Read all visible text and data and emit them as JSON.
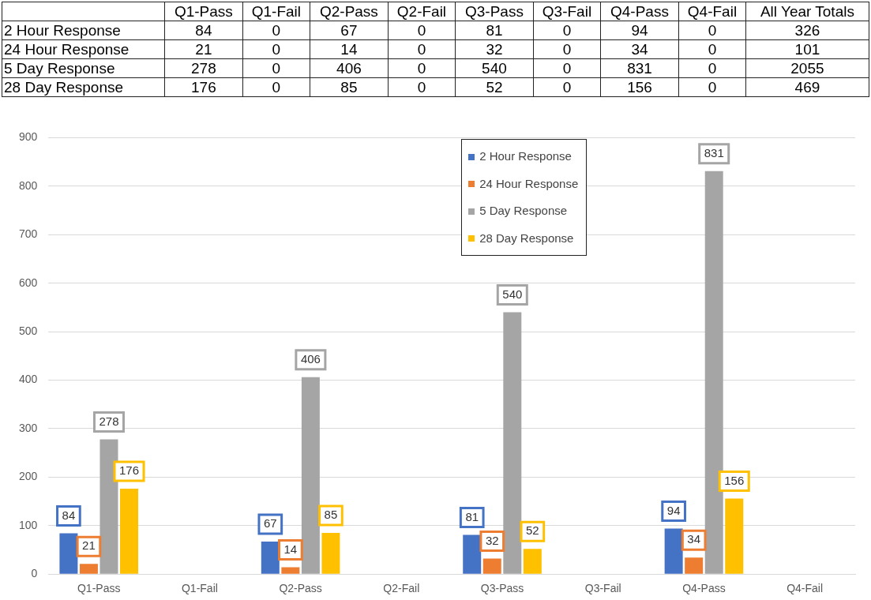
{
  "chart_data": [
    {
      "type": "heatmap",
      "categories": [
        "Q1-Pass",
        "Q1-Fail",
        "Q2-Pass",
        "Q2-Fail",
        "Q3-Pass",
        "Q3-Fail",
        "Q4-Pass",
        "Q4-Fail",
        "All Year Totals"
      ],
      "y_categories": [
        "2 Hour Response",
        "24 Hour Response",
        "5 Day Response",
        "28 Day Response"
      ],
      "cells": [
        [
          84,
          0,
          67,
          0,
          81,
          0,
          94,
          0,
          326
        ],
        [
          21,
          0,
          14,
          0,
          32,
          0,
          34,
          0,
          101
        ],
        [
          278,
          0,
          406,
          0,
          540,
          0,
          831,
          0,
          2055
        ],
        [
          176,
          0,
          85,
          0,
          52,
          0,
          156,
          0,
          469
        ]
      ],
      "data_labels": true
    },
    {
      "type": "bar",
      "categories": [
        "Q1-Pass",
        "Q1-Fail",
        "Q2-Pass",
        "Q2-Fail",
        "Q3-Pass",
        "Q3-Fail",
        "Q4-Pass",
        "Q4-Fail"
      ],
      "series": [
        {
          "name": "2 Hour Response",
          "color": "#4472c4",
          "values": [
            84,
            0,
            67,
            0,
            81,
            0,
            94,
            0
          ],
          "value_labels": [
            "84",
            null,
            "67",
            null,
            "81",
            null,
            "94",
            null
          ]
        },
        {
          "name": "24 Hour Response",
          "color": "#ed7d31",
          "values": [
            21,
            0,
            14,
            0,
            32,
            0,
            34,
            0
          ],
          "value_labels": [
            "21",
            null,
            "14",
            null,
            "32",
            null,
            "34",
            null
          ]
        },
        {
          "name": "5 Day Response",
          "color": "#a5a5a5",
          "values": [
            278,
            0,
            406,
            0,
            540,
            0,
            831,
            0
          ],
          "value_labels": [
            "278",
            null,
            "406",
            null,
            "540",
            null,
            "831",
            null
          ]
        },
        {
          "name": "28 Day Response",
          "color": "#ffc000",
          "values": [
            176,
            0,
            85,
            0,
            52,
            0,
            156,
            0
          ],
          "value_labels": [
            "176",
            null,
            "85",
            null,
            "52",
            null,
            "156",
            null
          ]
        }
      ],
      "ylim": [
        0,
        900
      ],
      "yticks": [
        0,
        100,
        200,
        300,
        400,
        500,
        600,
        700,
        800,
        900
      ],
      "grid": "y",
      "legend": "top"
    }
  ]
}
